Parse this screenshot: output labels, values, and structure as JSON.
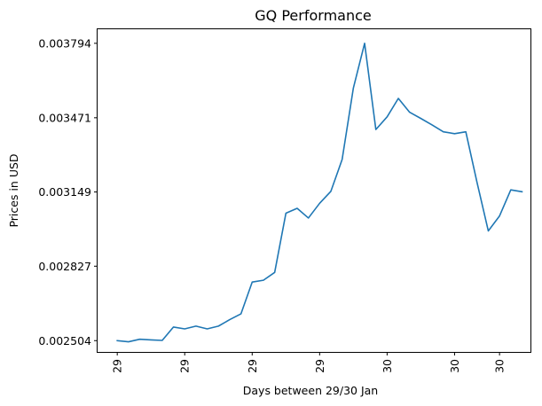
{
  "chart_data": {
    "type": "line",
    "title": "GQ Performance",
    "xlabel": "Days between 29/30 Jan",
    "ylabel": "Prices in USD",
    "grid": false,
    "legend": "none",
    "series_color": "#1f77b4",
    "y_ticks": [
      0.002504,
      0.002827,
      0.003149,
      0.003471,
      0.003794
    ],
    "y_tick_labels": [
      "0.002504",
      "0.002827",
      "0.003149",
      "0.003471",
      "0.003794"
    ],
    "ylim": [
      0.002455,
      0.003855
    ],
    "x_ticks": [
      0,
      6,
      12,
      18,
      24,
      30,
      34
    ],
    "x_tick_labels": [
      "29",
      "29",
      "29",
      "29",
      "30",
      "30",
      "30"
    ],
    "xlim": [
      -1.75,
      36.75
    ],
    "x": [
      0,
      1,
      2,
      3,
      4,
      5,
      6,
      7,
      8,
      9,
      10,
      11,
      12,
      13,
      14,
      15,
      16,
      17,
      18,
      19,
      20,
      21,
      22,
      23,
      24,
      25,
      26,
      27,
      28,
      29,
      30,
      31,
      32,
      33,
      34,
      35,
      36
    ],
    "values": [
      0.002504,
      0.002499,
      0.00251,
      0.002507,
      0.002505,
      0.002563,
      0.002555,
      0.002567,
      0.002555,
      0.002567,
      0.002595,
      0.00262,
      0.002758,
      0.002766,
      0.0028,
      0.003057,
      0.003078,
      0.003036,
      0.0031,
      0.003152,
      0.00329,
      0.0036,
      0.003794,
      0.00342,
      0.003475,
      0.003555,
      0.003495,
      0.003468,
      0.00344,
      0.00341,
      0.003402,
      0.00341,
      0.00319,
      0.00298,
      0.003045,
      0.003158,
      0.00315
    ]
  }
}
